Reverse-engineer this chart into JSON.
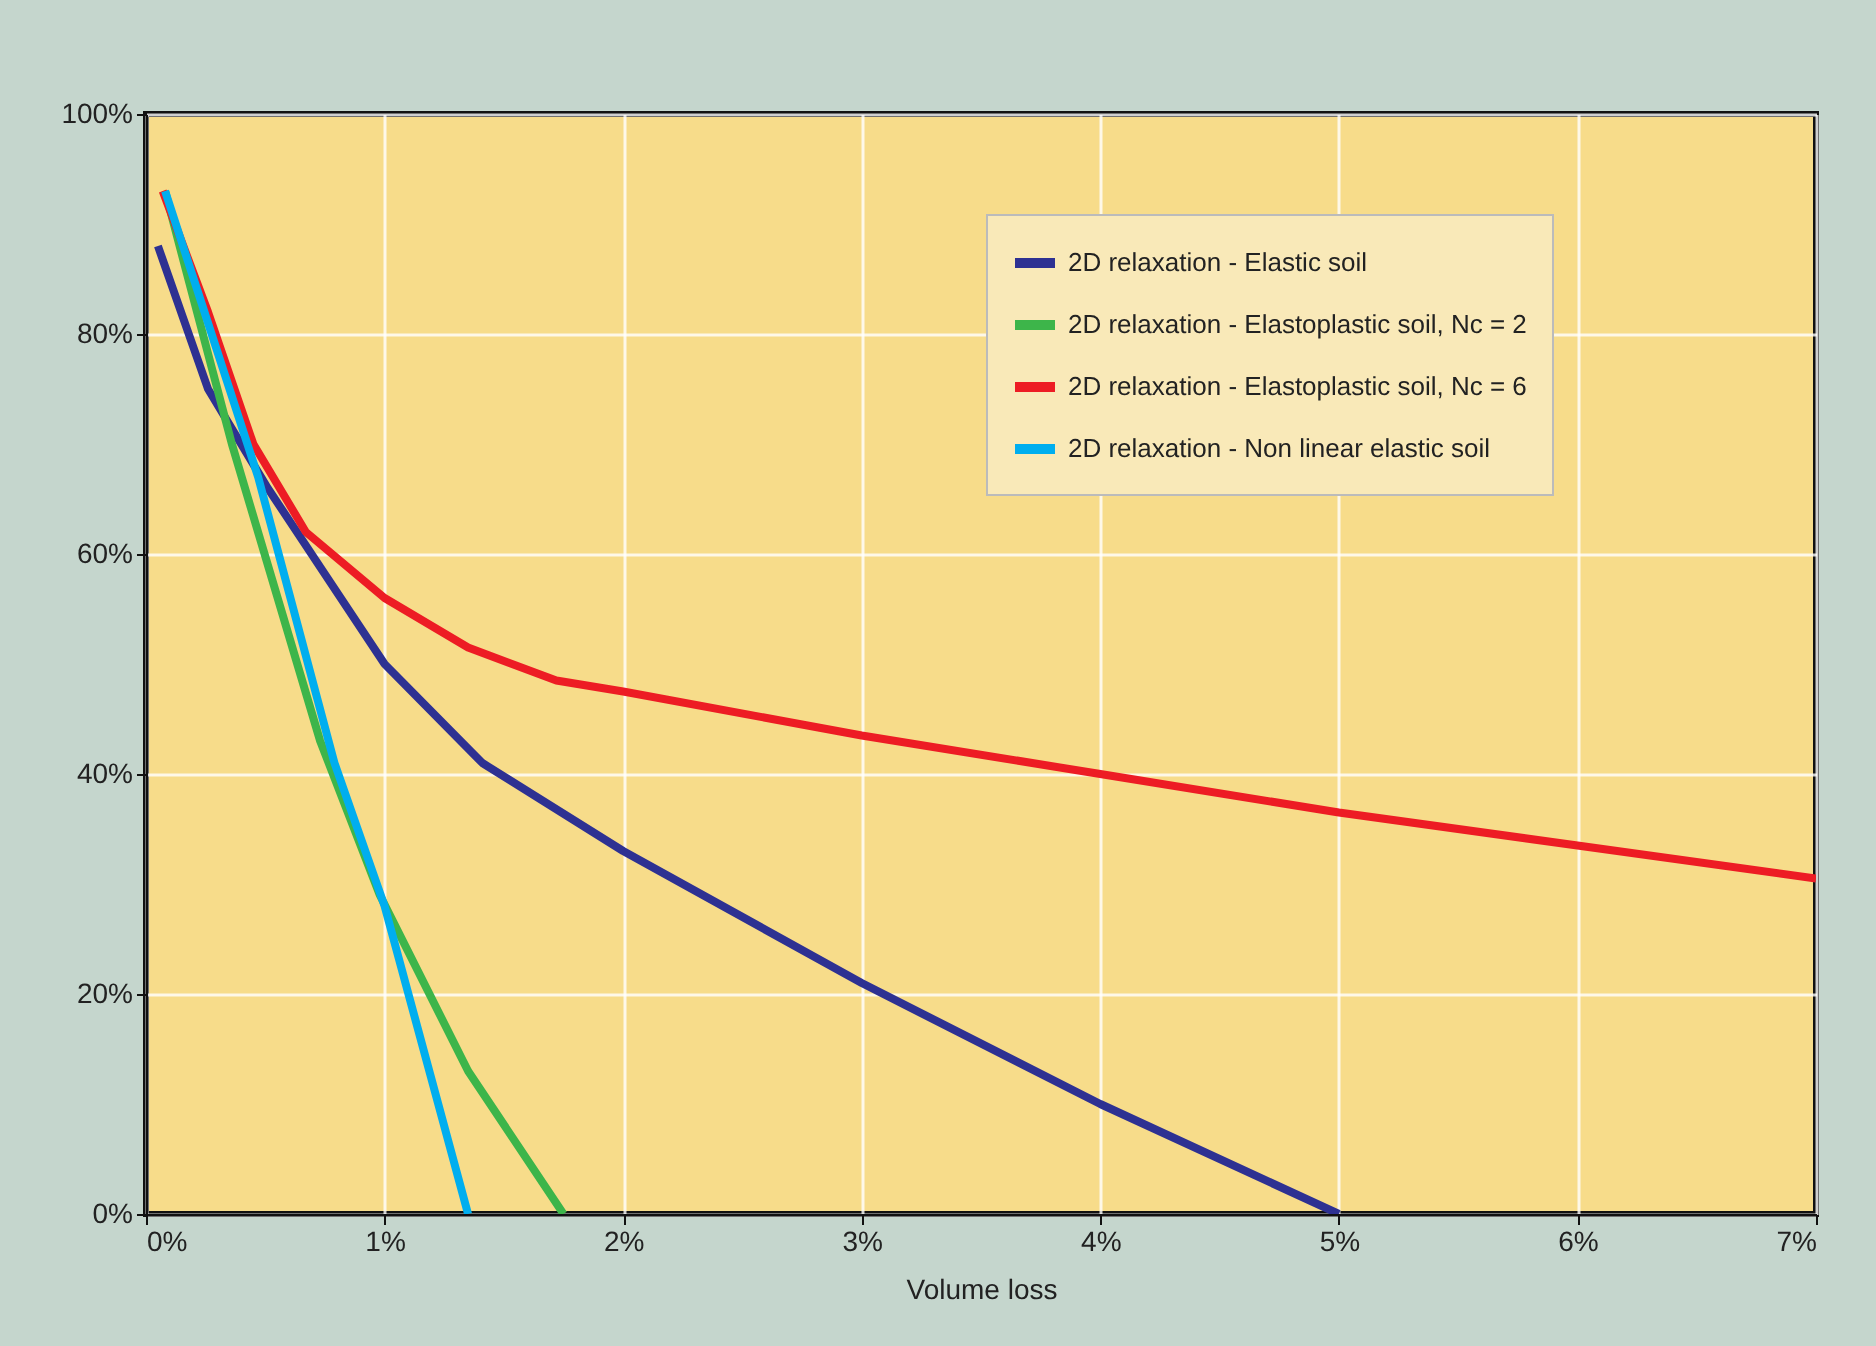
{
  "chart_data": {
    "type": "line",
    "xlabel": "Volume loss",
    "xlim": [
      0,
      7
    ],
    "ylim": [
      0,
      100
    ],
    "xticks": [
      {
        "value": 0,
        "label": "0%"
      },
      {
        "value": 1,
        "label": "1%"
      },
      {
        "value": 2,
        "label": "2%"
      },
      {
        "value": 3,
        "label": "3%"
      },
      {
        "value": 4,
        "label": "4%"
      },
      {
        "value": 5,
        "label": "5%"
      },
      {
        "value": 6,
        "label": "6%"
      },
      {
        "value": 7,
        "label": "7%"
      }
    ],
    "yticks": [
      {
        "value": 0,
        "label": "0%"
      },
      {
        "value": 20,
        "label": "20%"
      },
      {
        "value": 40,
        "label": "40%"
      },
      {
        "value": 60,
        "label": "60%"
      },
      {
        "value": 80,
        "label": "80%"
      },
      {
        "value": 100,
        "label": "100%"
      }
    ],
    "grid": true,
    "legend": "top right",
    "marker": "none",
    "line_style": "solid",
    "series": [
      {
        "name": "2D relaxation - Elastic soil",
        "color": "#2e3192",
        "x": [
          0.05,
          0.26,
          0.51,
          1,
          1.41,
          2,
          3,
          4,
          5
        ],
        "values": [
          88,
          75,
          66,
          50,
          41,
          33,
          21,
          10,
          0
        ]
      },
      {
        "name": "2D relaxation - Elastoplastic soil, Nc = 2",
        "color": "#3db54a",
        "x": [
          0.08,
          0.36,
          0.73,
          0.98,
          1.35,
          1.75
        ],
        "values": [
          93,
          70,
          43,
          29,
          13,
          0
        ]
      },
      {
        "name": "2D relaxation - Elastoplastic soil, Nc = 6",
        "color": "#ed1c24",
        "x": [
          0.07,
          0.26,
          0.45,
          0.67,
          1,
          1.35,
          1.72,
          2,
          3,
          4,
          5,
          6,
          7
        ],
        "values": [
          93,
          82,
          70,
          62,
          56,
          51.5,
          48.5,
          47.5,
          43.5,
          40,
          36.5,
          33.5,
          30.5
        ]
      },
      {
        "name": "2D relaxation - Non linear elastic soil",
        "color": "#00aeef",
        "x": [
          0.08,
          0.47,
          0.79,
          1,
          1.35
        ],
        "values": [
          93,
          67,
          41,
          28,
          0
        ]
      }
    ]
  }
}
